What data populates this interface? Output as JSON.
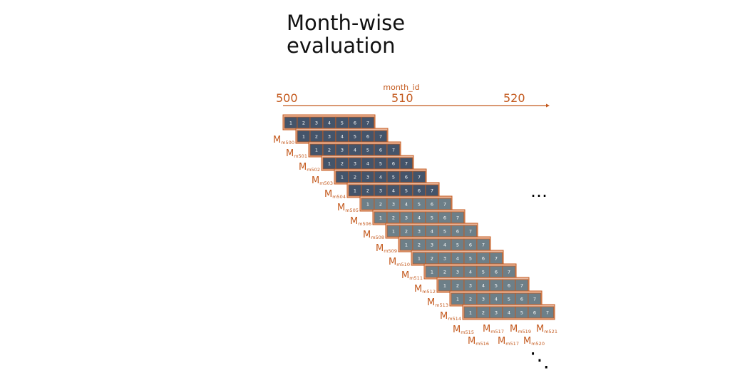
{
  "title_lines": [
    "Month-wise",
    "evaluation"
  ],
  "axis": {
    "label": "month_id",
    "ticks": [
      "500",
      "510",
      "520"
    ]
  },
  "colors": {
    "accent": "#c45a1e",
    "frame_fill": "#eab79c",
    "cell_dark": "#44546a",
    "cell_gray": "#6d7f88"
  },
  "window": {
    "cell_labels": [
      "1",
      "2",
      "3",
      "4",
      "5",
      "6",
      "7"
    ]
  },
  "rows": [
    {
      "model": "M",
      "sub": "m500"
    },
    {
      "model": "M",
      "sub": "m501"
    },
    {
      "model": "M",
      "sub": "m502"
    },
    {
      "model": "M",
      "sub": "m503"
    },
    {
      "model": "M",
      "sub": "m504"
    },
    {
      "model": "M",
      "sub": "m505"
    },
    {
      "model": "M",
      "sub": "m506"
    },
    {
      "model": "M",
      "sub": "m508"
    },
    {
      "model": "M",
      "sub": "m509"
    },
    {
      "model": "M",
      "sub": "m510"
    },
    {
      "model": "M",
      "sub": "m511"
    },
    {
      "model": "M",
      "sub": "m512"
    },
    {
      "model": "M",
      "sub": "m513"
    },
    {
      "model": "M",
      "sub": "m514"
    },
    {
      "model": "M",
      "sub": "m515"
    }
  ],
  "bottom_labels": [
    {
      "model": "M",
      "sub": "m516"
    },
    {
      "model": "M",
      "sub": "m517"
    },
    {
      "model": "M",
      "sub": "m517"
    },
    {
      "model": "M",
      "sub": "m519"
    },
    {
      "model": "M",
      "sub": "m520"
    },
    {
      "model": "M",
      "sub": "m521"
    }
  ],
  "continuation": {
    "right": "…",
    "bottom": "⋱"
  }
}
